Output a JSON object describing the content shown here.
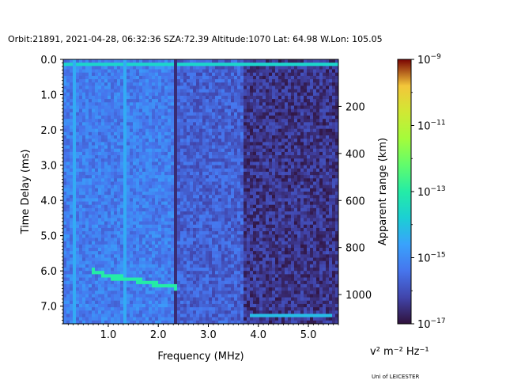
{
  "chart_data": {
    "type": "heatmap",
    "title": "Orbit:21891, 2021-04-28, 06:32:36 SZA:72.39 Altitude:1070 Lat: 64.98 W.Lon: 105.05",
    "xlabel": "Frequency (MHz)",
    "ylabel": "Time Delay (ms)",
    "y2label": "Apparent range (km)",
    "xlim": [
      0.1,
      5.6
    ],
    "ylim": [
      7.5,
      0.0
    ],
    "x_ticks": [
      1.0,
      2.0,
      3.0,
      4.0,
      5.0
    ],
    "x_tick_labels": [
      "1.0",
      "2.0",
      "3.0",
      "4.0",
      "5.0"
    ],
    "y_ticks": [
      0.0,
      1.0,
      2.0,
      3.0,
      4.0,
      5.0,
      6.0,
      7.0
    ],
    "y_tick_labels": [
      "0.0",
      "1.0",
      "2.0",
      "3.0",
      "4.0",
      "5.0",
      "6.0",
      "7.0"
    ],
    "y2_ticks_km": [
      200,
      400,
      600,
      800,
      1000
    ],
    "y2_tick_labels": [
      "200",
      "400",
      "600",
      "800",
      "1000"
    ],
    "y2_km_per_ms": 149.9,
    "colorbar": {
      "scale": "log",
      "cmap": "turbo",
      "min_exp": -17,
      "max_exp": -9,
      "ticks_exp": [
        -9,
        -11,
        -13,
        -15,
        -17
      ],
      "tick_base": "10",
      "unit_label": "v² m⁻² Hz⁻¹"
    },
    "features": {
      "surface_echo": {
        "delay_ms": 0.15,
        "x_range_mhz": [
          0.1,
          5.6
        ]
      },
      "ionospheric_trace": [
        [
          0.7,
          6.0
        ],
        [
          1.0,
          6.15
        ],
        [
          1.5,
          6.25
        ],
        [
          2.0,
          6.4
        ],
        [
          2.35,
          6.45
        ]
      ],
      "vertical_lines_mhz": [
        0.3,
        1.35,
        2.35
      ],
      "low_band_trace": {
        "delay_ms": 7.25,
        "x_range_mhz": [
          3.8,
          5.5
        ]
      }
    },
    "footer": "Uni of LEICESTER"
  }
}
